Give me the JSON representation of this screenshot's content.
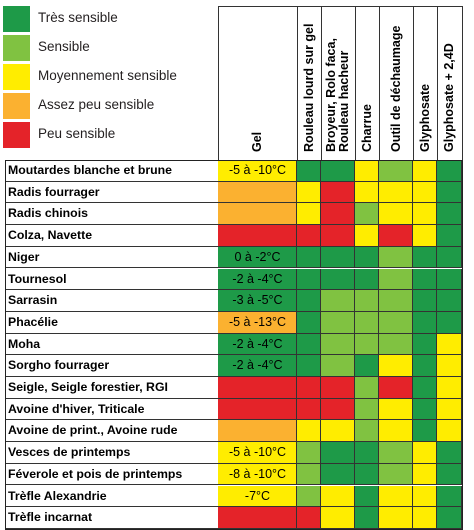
{
  "colors": {
    "tres_sensible": "#1e9a48",
    "sensible": "#80c241",
    "moyennement_sensible": "#ffed00",
    "assez_peu_sensible": "#fbb130",
    "peu_sensible": "#e42329"
  },
  "legend": [
    {
      "key": "tres_sensible",
      "label": "Très sensible"
    },
    {
      "key": "sensible",
      "label": "Sensible"
    },
    {
      "key": "moyennement_sensible",
      "label": "Moyennement sensible"
    },
    {
      "key": "assez_peu_sensible",
      "label": "Assez peu sensible"
    },
    {
      "key": "peu_sensible",
      "label": "Peu sensible"
    }
  ],
  "chart_data": {
    "type": "table",
    "columns": [
      [
        "Gel"
      ],
      [
        "Rouleau lourd sur gel"
      ],
      [
        "Broyeur, Rolo faca,",
        "Rouleau hacheur"
      ],
      [
        "Charrue"
      ],
      [
        "Outil de déchaumage"
      ],
      [
        "Glyphosate"
      ],
      [
        "Glyphosate + 2,4D"
      ]
    ],
    "rows": [
      {
        "label": "Moutardes blanche et brune",
        "gel": "-5 à -10°C",
        "cells": [
          "moyennement_sensible",
          "tres_sensible",
          "tres_sensible",
          "moyennement_sensible",
          "sensible",
          "moyennement_sensible",
          "tres_sensible"
        ]
      },
      {
        "label": "Radis fourrager",
        "gel": "",
        "cells": [
          "assez_peu_sensible",
          "moyennement_sensible",
          "peu_sensible",
          "moyennement_sensible",
          "moyennement_sensible",
          "moyennement_sensible",
          "tres_sensible"
        ]
      },
      {
        "label": "Radis chinois",
        "gel": "",
        "cells": [
          "assez_peu_sensible",
          "moyennement_sensible",
          "peu_sensible",
          "sensible",
          "moyennement_sensible",
          "moyennement_sensible",
          "tres_sensible"
        ]
      },
      {
        "label": "Colza, Navette",
        "gel": "",
        "cells": [
          "peu_sensible",
          "peu_sensible",
          "peu_sensible",
          "moyennement_sensible",
          "peu_sensible",
          "moyennement_sensible",
          "tres_sensible"
        ]
      },
      {
        "label": "Niger",
        "gel": "0 à -2°C",
        "cells": [
          "tres_sensible",
          "tres_sensible",
          "tres_sensible",
          "tres_sensible",
          "sensible",
          "tres_sensible",
          "tres_sensible"
        ]
      },
      {
        "label": "Tournesol",
        "gel": "-2 à -4°C",
        "cells": [
          "tres_sensible",
          "tres_sensible",
          "tres_sensible",
          "tres_sensible",
          "sensible",
          "tres_sensible",
          "tres_sensible"
        ]
      },
      {
        "label": "Sarrasin",
        "gel": "-3 à -5°C",
        "cells": [
          "tres_sensible",
          "tres_sensible",
          "sensible",
          "sensible",
          "sensible",
          "tres_sensible",
          "tres_sensible"
        ]
      },
      {
        "label": "Phacélie",
        "gel": "-5 à -13°C",
        "cells": [
          "assez_peu_sensible",
          "tres_sensible",
          "sensible",
          "sensible",
          "sensible",
          "tres_sensible",
          "tres_sensible"
        ]
      },
      {
        "label": "Moha",
        "gel": "-2 à -4°C",
        "cells": [
          "tres_sensible",
          "tres_sensible",
          "sensible",
          "sensible",
          "sensible",
          "tres_sensible",
          "moyennement_sensible"
        ]
      },
      {
        "label": "Sorgho fourrager",
        "gel": "-2 à -4°C",
        "cells": [
          "tres_sensible",
          "tres_sensible",
          "sensible",
          "tres_sensible",
          "moyennement_sensible",
          "tres_sensible",
          "moyennement_sensible"
        ]
      },
      {
        "label": "Seigle, Seigle forestier, RGI",
        "gel": "",
        "cells": [
          "peu_sensible",
          "peu_sensible",
          "peu_sensible",
          "sensible",
          "peu_sensible",
          "tres_sensible",
          "moyennement_sensible"
        ]
      },
      {
        "label": "Avoine d'hiver, Triticale",
        "gel": "",
        "cells": [
          "peu_sensible",
          "peu_sensible",
          "peu_sensible",
          "sensible",
          "moyennement_sensible",
          "tres_sensible",
          "moyennement_sensible"
        ]
      },
      {
        "label": "Avoine de print., Avoine rude",
        "gel": "",
        "cells": [
          "assez_peu_sensible",
          "moyennement_sensible",
          "moyennement_sensible",
          "sensible",
          "moyennement_sensible",
          "tres_sensible",
          "moyennement_sensible"
        ]
      },
      {
        "label": "Vesces de printemps",
        "gel": "-5 à -10°C",
        "cells": [
          "moyennement_sensible",
          "sensible",
          "tres_sensible",
          "tres_sensible",
          "sensible",
          "moyennement_sensible",
          "tres_sensible"
        ]
      },
      {
        "label": "Féverole et pois de printemps",
        "gel": "-8 à -10°C",
        "cells": [
          "moyennement_sensible",
          "sensible",
          "tres_sensible",
          "tres_sensible",
          "sensible",
          "moyennement_sensible",
          "tres_sensible"
        ]
      },
      {
        "label": "Trèfle Alexandrie",
        "gel": "-7°C",
        "cells": [
          "moyennement_sensible",
          "sensible",
          "moyennement_sensible",
          "tres_sensible",
          "moyennement_sensible",
          "moyennement_sensible",
          "tres_sensible"
        ]
      },
      {
        "label": "Trèfle incarnat",
        "gel": "",
        "cells": [
          "peu_sensible",
          "peu_sensible",
          "moyennement_sensible",
          "tres_sensible",
          "moyennement_sensible",
          "moyennement_sensible",
          "tres_sensible"
        ]
      }
    ]
  }
}
